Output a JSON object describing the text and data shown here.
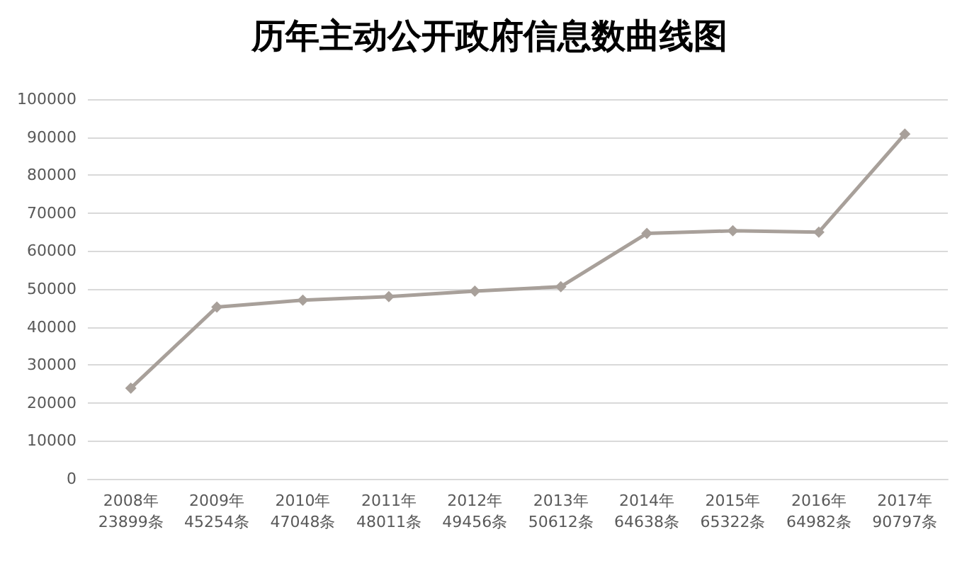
{
  "chart_data": {
    "type": "line",
    "title": "历年主动公开政府信息数曲线图",
    "categories": [
      "2008年\n23899条",
      "2009年\n45254条",
      "2010年\n47048条",
      "2011年\n48011条",
      "2012年\n49456条",
      "2013年\n50612条",
      "2014年\n64638条",
      "2015年\n65322条",
      "2016年\n64982条",
      "2017年\n90797条"
    ],
    "series": [
      {
        "color": "#a8a09a",
        "values": [
          23899,
          45254,
          47048,
          48011,
          49456,
          50612,
          64638,
          65322,
          64982,
          90797
        ]
      }
    ],
    "ylim": [
      0,
      100000
    ],
    "yticks": [
      0,
      10000,
      20000,
      30000,
      40000,
      50000,
      60000,
      70000,
      80000,
      90000,
      100000
    ],
    "grid": "y",
    "marker": "diamond",
    "line_style": "solid"
  }
}
